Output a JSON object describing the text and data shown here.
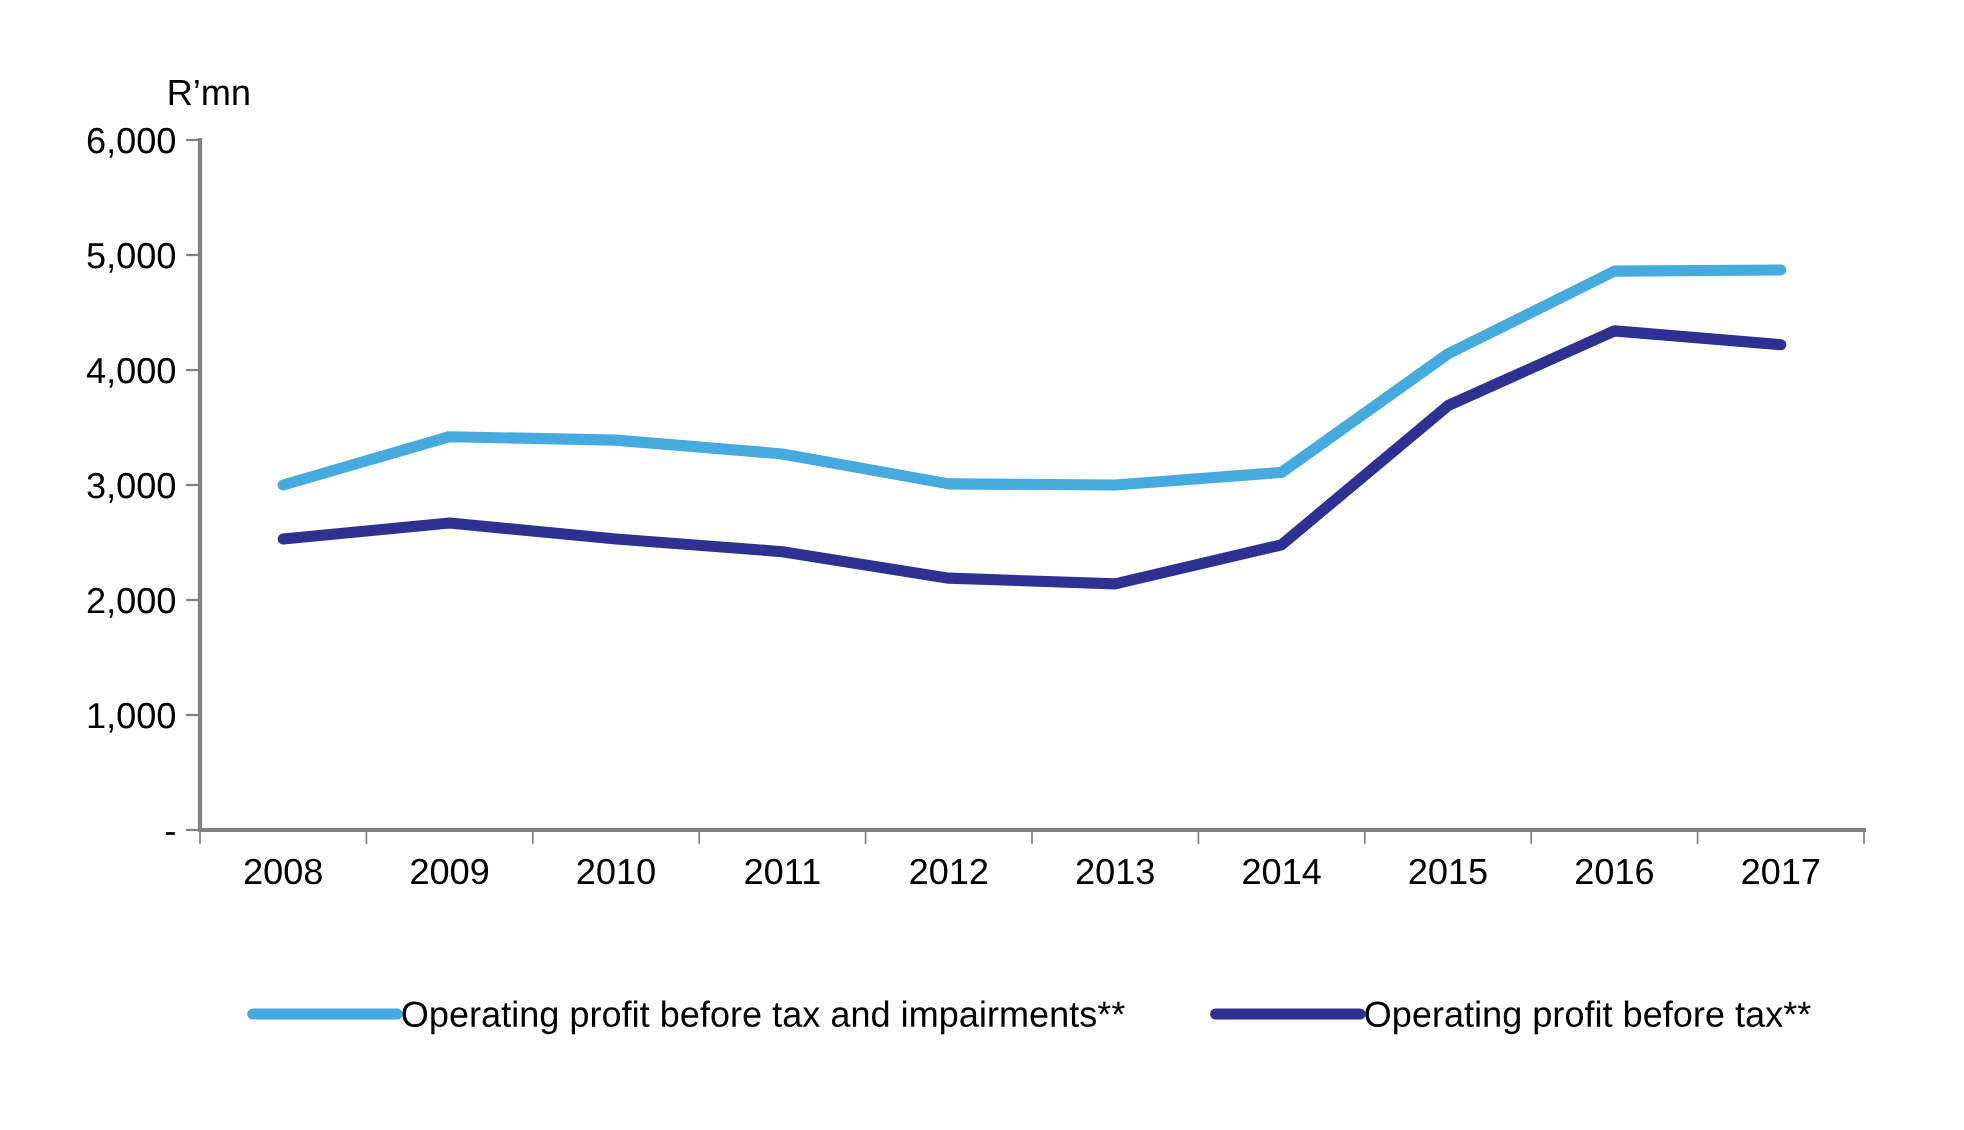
{
  "chart_data": {
    "type": "line",
    "ylabel": "R’mn",
    "categories": [
      "2008",
      "2009",
      "2010",
      "2011",
      "2012",
      "2013",
      "2014",
      "2015",
      "2016",
      "2017"
    ],
    "series": [
      {
        "name": "Operating profit before tax and impairments**",
        "color": "#46aade",
        "values": [
          3000,
          3420,
          3390,
          3270,
          3010,
          3000,
          3110,
          4140,
          4860,
          4870
        ]
      },
      {
        "name": "Operating profit before tax**",
        "color": "#2e3192",
        "values": [
          2530,
          2670,
          2530,
          2420,
          2190,
          2140,
          2480,
          3690,
          4340,
          4220
        ]
      }
    ],
    "ylim": [
      0,
      6000
    ],
    "yticks": [
      {
        "value": 0,
        "label": "-"
      },
      {
        "value": 1000,
        "label": "1,000"
      },
      {
        "value": 2000,
        "label": "2,000"
      },
      {
        "value": 3000,
        "label": "3,000"
      },
      {
        "value": 4000,
        "label": "4,000"
      },
      {
        "value": 5000,
        "label": "5,000"
      },
      {
        "value": 6000,
        "label": "6,000"
      }
    ],
    "grid": false,
    "legend": "bottom",
    "marker": "none",
    "line_style": "solid"
  }
}
